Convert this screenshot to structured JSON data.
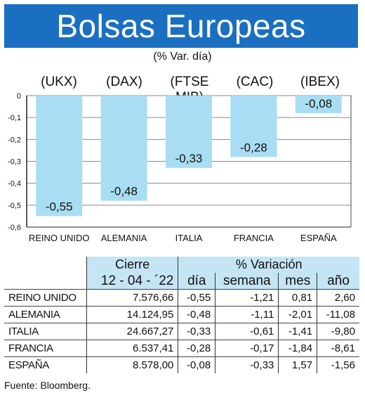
{
  "title": "Bolsas Europeas",
  "subtitle": "(% Var. día)",
  "chart_data": {
    "type": "bar",
    "categories": [
      "REINO UNIDO",
      "ALEMANIA",
      "ITALIA",
      "FRANCIA",
      "ESPAÑA"
    ],
    "tickers": [
      "(UKX)",
      "(DAX)",
      "(FTSE MIB)",
      "(CAC)",
      "(IBEX)"
    ],
    "values": [
      -0.55,
      -0.48,
      -0.33,
      -0.28,
      -0.08
    ],
    "value_labels": [
      "-0,55",
      "-0,48",
      "-0,33",
      "-0,28",
      "-0,08"
    ],
    "ylim": [
      -0.6,
      0
    ],
    "yticks": [
      "0",
      "-0,1",
      "-0,2",
      "-0,3",
      "-0,4",
      "-0,5",
      "-0,6"
    ],
    "grid": true,
    "colors": {
      "bar": "#a9ddf3",
      "grid": "#8a8a8a",
      "title_bg": "#1a6fc1",
      "table_header_bg": "#c5e5f5"
    }
  },
  "table": {
    "group_headers": {
      "cierre": "Cierre",
      "variacion": "% Variación"
    },
    "date": "12 - 04 - ´22",
    "columns": [
      "día",
      "semana",
      "mes",
      "año"
    ],
    "rows": [
      {
        "country": "REINO UNIDO",
        "cierre": "7.576,66",
        "dia": "-0,55",
        "semana": "-1,21",
        "mes": "0,81",
        "ano": "2,60"
      },
      {
        "country": "ALEMANIA",
        "cierre": "14.124,95",
        "dia": "-0,48",
        "semana": "-1,11",
        "mes": "-2,01",
        "ano": "-11,08"
      },
      {
        "country": "ITALIA",
        "cierre": "24.667,27",
        "dia": "-0,33",
        "semana": "-0,61",
        "mes": "-1,41",
        "ano": "-9,80"
      },
      {
        "country": "FRANCIA",
        "cierre": "6.537,41",
        "dia": "-0,28",
        "semana": "-0,17",
        "mes": "-1,84",
        "ano": "-8,61"
      },
      {
        "country": "ESPAÑA",
        "cierre": "8.578,00",
        "dia": "-0,08",
        "semana": "-0,33",
        "mes": "1,57",
        "ano": "-1,56"
      }
    ]
  },
  "source": "Fuente: Bloomberg."
}
